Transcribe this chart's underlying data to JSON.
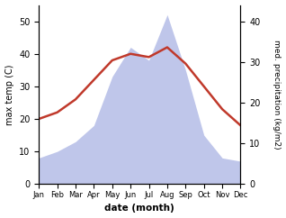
{
  "months": [
    "Jan",
    "Feb",
    "Mar",
    "Apr",
    "May",
    "Jun",
    "Jul",
    "Aug",
    "Sep",
    "Oct",
    "Nov",
    "Dec"
  ],
  "month_indices": [
    1,
    2,
    3,
    4,
    5,
    6,
    7,
    8,
    9,
    10,
    11,
    12
  ],
  "temperature": [
    20,
    22,
    26,
    32,
    38,
    40,
    39,
    42,
    37,
    30,
    23,
    18
  ],
  "precipitation": [
    8,
    10,
    13,
    18,
    33,
    42,
    38,
    52,
    35,
    15,
    8,
    7
  ],
  "temp_color": "#c0392b",
  "precip_fill_color": "#b8c0e8",
  "temp_ylim": [
    0,
    55
  ],
  "precip_ylim": [
    0,
    55
  ],
  "right_ylim": [
    0,
    44
  ],
  "temp_yticks": [
    0,
    10,
    20,
    30,
    40,
    50
  ],
  "right_yticks": [
    0,
    10,
    20,
    30,
    40
  ],
  "xlabel": "date (month)",
  "ylabel_left": "max temp (C)",
  "ylabel_right": "med. precipitation (kg/m2)",
  "figsize": [
    3.18,
    2.42
  ],
  "dpi": 100
}
